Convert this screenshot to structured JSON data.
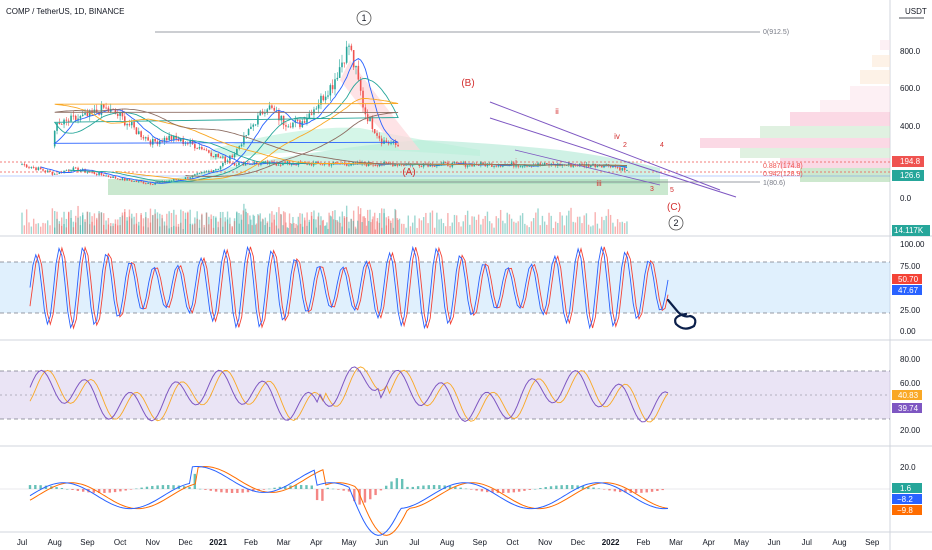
{
  "header": {
    "title": "COMP / TetherUS, 1D, BINANCE",
    "currency": "USDT"
  },
  "colors": {
    "up": "#26a69a",
    "down": "#ef5350",
    "stoch_k": "#2962ff",
    "stoch_d": "#f44336",
    "rsi": "#7e57c2",
    "rsi_ma": "#f9a825",
    "macd": "#2962ff",
    "signal": "#ff6d00",
    "wave": "#d32f2f",
    "channel": "#7e57c2",
    "hline": "#ef5350",
    "mark": "#0b1f4a"
  },
  "chart_data": [
    {
      "name": "price",
      "type": "candlestick",
      "x_labels": [
        "Jul",
        "Aug",
        "Sep",
        "Oct",
        "Nov",
        "Dec",
        "2021",
        "Feb",
        "Mar",
        "Apr",
        "May",
        "Jun",
        "Jul",
        "Aug",
        "Sep",
        "Oct",
        "Nov",
        "Dec",
        "2022",
        "Feb",
        "Mar",
        "Apr",
        "May",
        "Jun",
        "Jul",
        "Aug",
        "Sep"
      ],
      "y_ticks": [
        "800.0",
        "600.0",
        "400.0",
        "200.0",
        "0.0"
      ],
      "price_badges": [
        {
          "value": "194.8",
          "color": "#ef5350"
        },
        {
          "value": "126.6",
          "color": "#26a69a"
        },
        {
          "value": "14.117K",
          "color": "#26a69a"
        }
      ],
      "close_path": [
        [
          "Jul",
          200
        ],
        [
          "Jul",
          175
        ],
        [
          "Aug",
          148
        ],
        [
          "Aug",
          175
        ],
        [
          "Sep",
          160
        ],
        [
          "Sep",
          140
        ],
        [
          "Oct",
          120
        ],
        [
          "Oct",
          105
        ],
        [
          "Nov",
          95
        ],
        [
          "Nov",
          110
        ],
        [
          "Dec",
          125
        ],
        [
          "Dec",
          150
        ],
        [
          "2021",
          180
        ],
        [
          "2021",
          260
        ],
        [
          "Feb",
          400
        ],
        [
          "Feb",
          520
        ],
        [
          "Mar",
          430
        ],
        [
          "Mar",
          420
        ],
        [
          "Apr",
          520
        ],
        [
          "Apr",
          640
        ],
        [
          "May",
          850
        ],
        [
          "May",
          480
        ],
        [
          "Jun",
          330
        ],
        [
          "Jun",
          300
        ],
        [
          "Jul",
          400
        ],
        [
          "Jul",
          440
        ],
        [
          "Aug",
          460
        ],
        [
          "Aug",
          505
        ],
        [
          "Sep",
          460
        ],
        [
          "Sep",
          380
        ],
        [
          "Oct",
          320
        ],
        [
          "Oct",
          345
        ],
        [
          "Nov",
          320
        ],
        [
          "Nov",
          290
        ],
        [
          "Dec",
          240
        ],
        [
          "Dec",
          205
        ],
        [
          "2022",
          195
        ],
        [
          "2022",
          165
        ],
        [
          "Feb",
          128
        ]
      ],
      "wave_labels": [
        {
          "text": "1",
          "circled": true
        },
        {
          "text": "(B)"
        },
        {
          "text": "(A)"
        },
        {
          "text": "ii"
        },
        {
          "text": "iv"
        },
        {
          "text": "2"
        },
        {
          "text": "4"
        },
        {
          "text": "i"
        },
        {
          "text": "iii"
        },
        {
          "text": "3"
        },
        {
          "text": "5"
        },
        {
          "text": "(C)"
        },
        {
          "text": "2",
          "circled": true
        }
      ],
      "fib_levels": [
        {
          "label": "0(912.5)",
          "value": 912.5
        },
        {
          "label": "0.887(174.8)",
          "value": 174.8
        },
        {
          "label": "0.942(128.9)",
          "value": 128.9
        },
        {
          "label": "1(80.6)",
          "value": 80.6
        }
      ]
    },
    {
      "name": "stochastic",
      "type": "line",
      "y_ticks": [
        "100.00",
        "75.00",
        "25.00",
        "0.00"
      ],
      "bands": [
        80,
        20
      ],
      "values": {
        "k": 50.7,
        "d": 47.67
      },
      "value_labels": [
        "50.70",
        "47.67"
      ]
    },
    {
      "name": "rsi",
      "type": "line",
      "y_ticks": [
        "80.00",
        "60.00",
        "20.00"
      ],
      "bands": [
        70,
        30
      ],
      "values": {
        "rsi": 40.83,
        "ma": 39.74
      },
      "value_labels": [
        "40.83",
        "39.74"
      ]
    },
    {
      "name": "macd",
      "type": "line+bar",
      "y_ticks": [
        "20.0",
        "0.0"
      ],
      "values": {
        "histogram": 1.6,
        "macd": -8.2,
        "signal": -9.8
      },
      "value_labels": [
        "1.6",
        "−8.2",
        "−9.8"
      ]
    }
  ]
}
